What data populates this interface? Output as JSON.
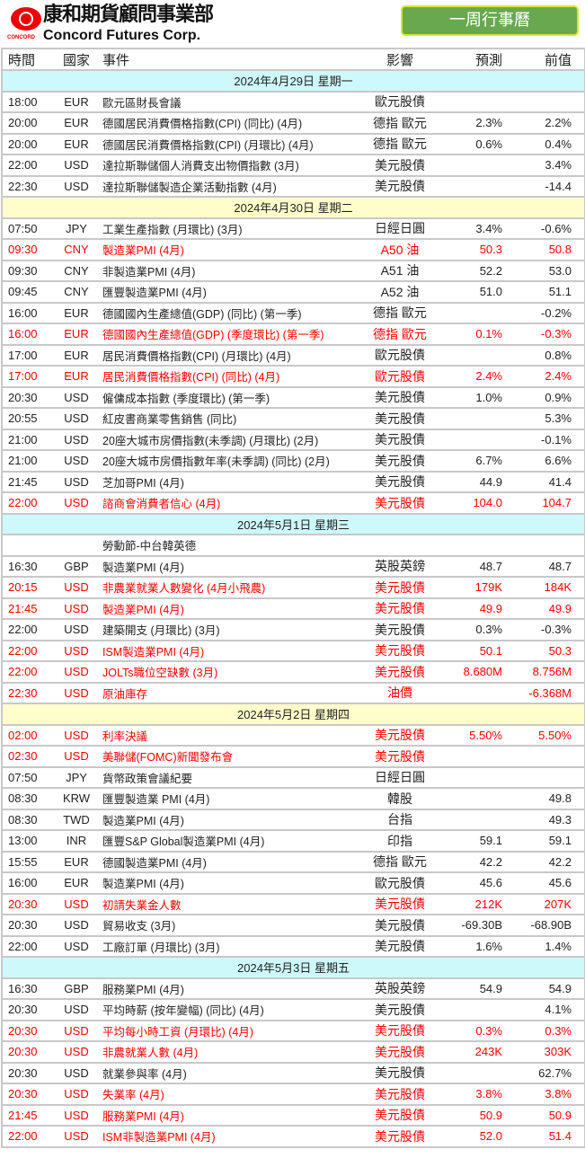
{
  "logo": {
    "small": "CONCORD",
    "cn": "康和期貨顧問事業部",
    "en": "Concord Futures Corp."
  },
  "title": "一周行事曆",
  "columns": [
    "時間",
    "國家",
    "事件",
    "影響",
    "預測",
    "前值"
  ],
  "colors": {
    "cyan": "#cdf9fb",
    "yellow": "#ffffcc",
    "red": "#ff0000",
    "green": "#6aa84f"
  },
  "days": [
    {
      "date": "2024年4月29日  星期一",
      "bg": "cyan",
      "events": [
        {
          "time": "18:00",
          "country": "EUR",
          "event": "歐元區財長會議",
          "impact": "歐元股債",
          "forecast": "",
          "previous": "",
          "red": false
        },
        {
          "time": "20:00",
          "country": "EUR",
          "event": "德國居民消費價格指數(CPI) (同比) (4月)",
          "impact": "德指 歐元",
          "forecast": "2.3%",
          "previous": "2.2%",
          "red": false
        },
        {
          "time": "20:00",
          "country": "EUR",
          "event": "德國居民消費價格指數(CPI) (月環比) (4月)",
          "impact": "德指 歐元",
          "forecast": "0.6%",
          "previous": "0.4%",
          "red": false
        },
        {
          "time": "22:00",
          "country": "USD",
          "event": "達拉斯聯儲個人消費支出物價指數 (3月)",
          "impact": "美元股債",
          "forecast": "",
          "previous": "3.4%",
          "red": false
        },
        {
          "time": "22:30",
          "country": "USD",
          "event": "達拉斯聯儲製造企業活動指數 (4月)",
          "impact": "美元股債",
          "forecast": "",
          "previous": "-14.4",
          "red": false
        }
      ]
    },
    {
      "date": "2024年4月30日  星期二",
      "bg": "yellow",
      "events": [
        {
          "time": "07:50",
          "country": "JPY",
          "event": "工業生產指數 (月環比) (3月)",
          "impact": "日經日圓",
          "forecast": "3.4%",
          "previous": "-0.6%",
          "red": false
        },
        {
          "time": "09:30",
          "country": "CNY",
          "event": "製造業PMI (4月)",
          "impact": "A50 油",
          "forecast": "50.3",
          "previous": "50.8",
          "red": true
        },
        {
          "time": "09:30",
          "country": "CNY",
          "event": "非製造業PMI (4月)",
          "impact": "A51 油",
          "forecast": "52.2",
          "previous": "53.0",
          "red": false
        },
        {
          "time": "09:45",
          "country": "CNY",
          "event": "匯豐製造業PMI (4月)",
          "impact": "A52 油",
          "forecast": "51.0",
          "previous": "51.1",
          "red": false
        },
        {
          "time": "16:00",
          "country": "EUR",
          "event": "德國國內生產總值(GDP) (同比) (第一季)",
          "impact": "德指 歐元",
          "forecast": "",
          "previous": "-0.2%",
          "red": false
        },
        {
          "time": "16:00",
          "country": "EUR",
          "event": "德國國內生產總值(GDP) (季度環比) (第一季)",
          "impact": "德指 歐元",
          "forecast": "0.1%",
          "previous": "-0.3%",
          "red": true
        },
        {
          "time": "17:00",
          "country": "EUR",
          "event": "居民消費價格指數(CPI) (月環比) (4月)",
          "impact": "歐元股債",
          "forecast": "",
          "previous": "0.8%",
          "red": false
        },
        {
          "time": "17:00",
          "country": "EUR",
          "event": "居民消費價格指數(CPI) (同比) (4月)",
          "impact": "歐元股債",
          "forecast": "2.4%",
          "previous": "2.4%",
          "red": true
        },
        {
          "time": "20:30",
          "country": "USD",
          "event": "僱傭成本指數 (季度環比) (第一季)",
          "impact": "美元股債",
          "forecast": "1.0%",
          "previous": "0.9%",
          "red": false
        },
        {
          "time": "20:55",
          "country": "USD",
          "event": "紅皮書商業零售銷售 (同比)",
          "impact": "美元股債",
          "forecast": "",
          "previous": "5.3%",
          "red": false
        },
        {
          "time": "21:00",
          "country": "USD",
          "event": "20座大城市房價指數(未季調) (月環比) (2月)",
          "impact": "美元股債",
          "forecast": "",
          "previous": "-0.1%",
          "red": false
        },
        {
          "time": "21:00",
          "country": "USD",
          "event": "20座大城市房價指數年率(未季調) (同比) (2月)",
          "impact": "美元股債",
          "forecast": "6.7%",
          "previous": "6.6%",
          "red": false
        },
        {
          "time": "21:45",
          "country": "USD",
          "event": "芝加哥PMI (4月)",
          "impact": "美元股債",
          "forecast": "44.9",
          "previous": "41.4",
          "red": false
        },
        {
          "time": "22:00",
          "country": "USD",
          "event": "諮商會消費者信心 (4月)",
          "impact": "美元股債",
          "forecast": "104.0",
          "previous": "104.7",
          "red": true
        }
      ]
    },
    {
      "date": "2024年5月1日  星期三",
      "bg": "cyan",
      "events": [
        {
          "time": "",
          "country": "",
          "event": "勞動節-中台韓英德",
          "impact": "",
          "forecast": "",
          "previous": "",
          "red": false
        },
        {
          "time": "16:30",
          "country": "GBP",
          "event": "製造業PMI (4月)",
          "impact": "英股英鎊",
          "forecast": "48.7",
          "previous": "48.7",
          "red": false
        },
        {
          "time": "20:15",
          "country": "USD",
          "event": "非農業就業人數變化 (4月小飛農)",
          "impact": "美元股債",
          "forecast": "179K",
          "previous": "184K",
          "red": true
        },
        {
          "time": "21:45",
          "country": "USD",
          "event": "製造業PMI (4月)",
          "impact": "美元股債",
          "forecast": "49.9",
          "previous": "49.9",
          "red": true
        },
        {
          "time": "22:00",
          "country": "USD",
          "event": "建築開支 (月環比) (3月)",
          "impact": "美元股債",
          "forecast": "0.3%",
          "previous": "-0.3%",
          "red": false
        },
        {
          "time": "22:00",
          "country": "USD",
          "event": "ISM製造業PMI (4月)",
          "impact": "美元股債",
          "forecast": "50.1",
          "previous": "50.3",
          "red": true
        },
        {
          "time": "22:00",
          "country": "USD",
          "event": "JOLTs職位空缺數 (3月)",
          "impact": "美元股債",
          "forecast": "8.680M",
          "previous": "8.756M",
          "red": true
        },
        {
          "time": "22:30",
          "country": "USD",
          "event": "原油庫存",
          "impact": "油價",
          "forecast": "",
          "previous": "-6.368M",
          "red": true
        }
      ]
    },
    {
      "date": "2024年5月2日  星期四",
      "bg": "yellow",
      "events": [
        {
          "time": "02:00",
          "country": "USD",
          "event": "利率決議",
          "impact": "美元股債",
          "forecast": "5.50%",
          "previous": "5.50%",
          "red": true
        },
        {
          "time": "02:30",
          "country": "USD",
          "event": "美聯儲(FOMC)新聞發布會",
          "impact": "美元股債",
          "forecast": "",
          "previous": "",
          "red": true
        },
        {
          "time": "07:50",
          "country": "JPY",
          "event": "貨幣政策會議紀要",
          "impact": "日經日圓",
          "forecast": "",
          "previous": "",
          "red": false
        },
        {
          "time": "08:30",
          "country": "KRW",
          "event": "匯豐製造業 PMI (4月)",
          "impact": "韓股",
          "forecast": "",
          "previous": "49.8",
          "red": false
        },
        {
          "time": "08:30",
          "country": "TWD",
          "event": "製造業PMI (4月)",
          "impact": "台指",
          "forecast": "",
          "previous": "49.3",
          "red": false
        },
        {
          "time": "13:00",
          "country": "INR",
          "event": "匯豐S&P Global製造業PMI (4月)",
          "impact": "印指",
          "forecast": "59.1",
          "previous": "59.1",
          "red": false
        },
        {
          "time": "15:55",
          "country": "EUR",
          "event": "德國製造業PMI (4月)",
          "impact": "德指 歐元",
          "forecast": "42.2",
          "previous": "42.2",
          "red": false
        },
        {
          "time": "16:00",
          "country": "EUR",
          "event": "製造業PMI (4月)",
          "impact": "歐元股債",
          "forecast": "45.6",
          "previous": "45.6",
          "red": false
        },
        {
          "time": "20:30",
          "country": "USD",
          "event": "初請失業金人數",
          "impact": "美元股債",
          "forecast": "212K",
          "previous": "207K",
          "red": true
        },
        {
          "time": "20:30",
          "country": "USD",
          "event": "貿易收支 (3月)",
          "impact": "美元股債",
          "forecast": "-69.30B",
          "previous": "-68.90B",
          "red": false
        },
        {
          "time": "22:00",
          "country": "USD",
          "event": "工廠訂單 (月環比) (3月)",
          "impact": "美元股債",
          "forecast": "1.6%",
          "previous": "1.4%",
          "red": false
        }
      ]
    },
    {
      "date": "2024年5月3日  星期五",
      "bg": "cyan",
      "events": [
        {
          "time": "16:30",
          "country": "GBP",
          "event": "服務業PMI (4月)",
          "impact": "英股英鎊",
          "forecast": "54.9",
          "previous": "54.9",
          "red": false
        },
        {
          "time": "20:30",
          "country": "USD",
          "event": "平均時薪 (按年變幅) (同比) (4月)",
          "impact": "美元股債",
          "forecast": "",
          "previous": "4.1%",
          "red": false
        },
        {
          "time": "20:30",
          "country": "USD",
          "event": "平均每小時工資 (月環比) (4月)",
          "impact": "美元股債",
          "forecast": "0.3%",
          "previous": "0.3%",
          "red": true
        },
        {
          "time": "20:30",
          "country": "USD",
          "event": "非農就業人數 (4月)",
          "impact": "美元股債",
          "forecast": "243K",
          "previous": "303K",
          "red": true
        },
        {
          "time": "20:30",
          "country": "USD",
          "event": "就業參與率 (4月)",
          "impact": "美元股債",
          "forecast": "",
          "previous": "62.7%",
          "red": false
        },
        {
          "time": "20:30",
          "country": "USD",
          "event": "失業率 (4月)",
          "impact": "美元股債",
          "forecast": "3.8%",
          "previous": "3.8%",
          "red": true
        },
        {
          "time": "21:45",
          "country": "USD",
          "event": "服務業PMI (4月)",
          "impact": "美元股債",
          "forecast": "50.9",
          "previous": "50.9",
          "red": true
        },
        {
          "time": "22:00",
          "country": "USD",
          "event": "ISM非製造業PMI (4月)",
          "impact": "美元股債",
          "forecast": "52.0",
          "previous": "51.4",
          "red": true
        }
      ]
    }
  ]
}
